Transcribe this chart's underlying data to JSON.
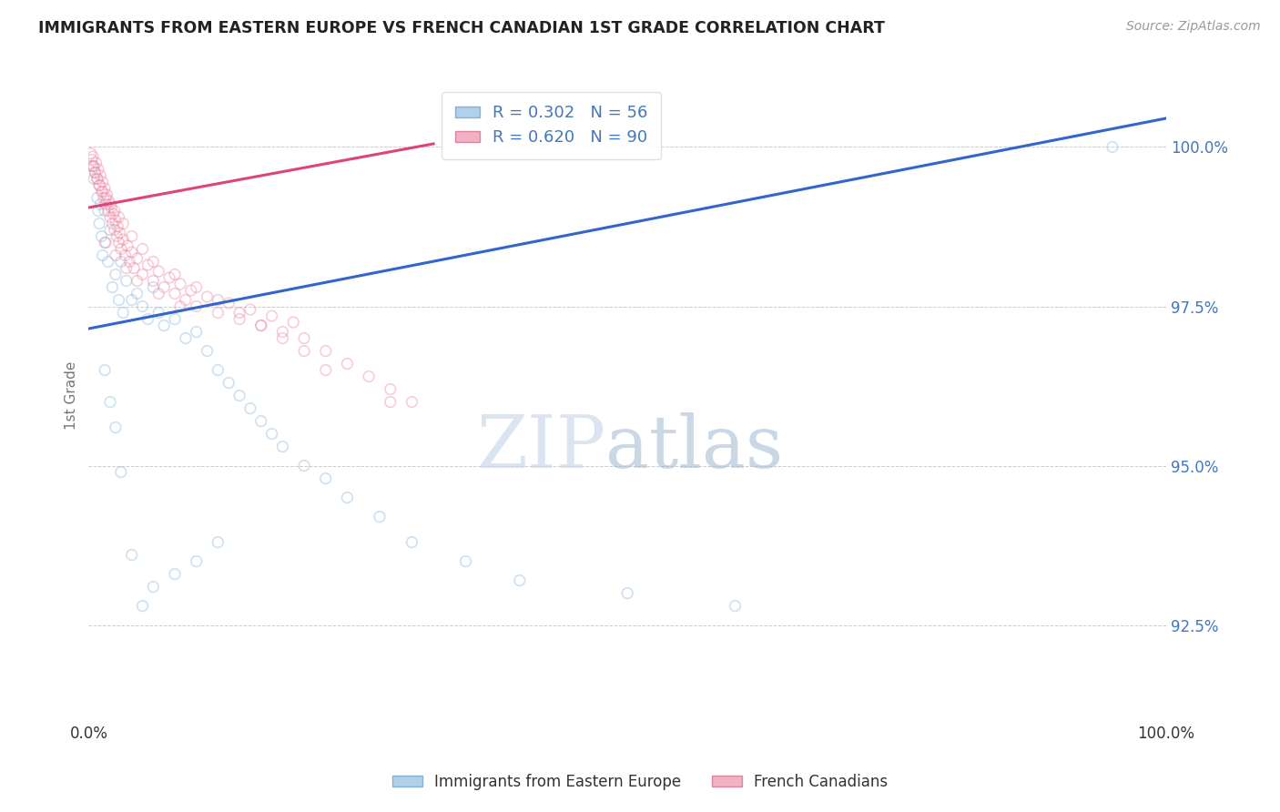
{
  "title": "IMMIGRANTS FROM EASTERN EUROPE VS FRENCH CANADIAN 1ST GRADE CORRELATION CHART",
  "source": "Source: ZipAtlas.com",
  "ylabel": "1st Grade",
  "xlim": [
    0.0,
    100.0
  ],
  "ylim": [
    91.0,
    101.2
  ],
  "yticks": [
    92.5,
    95.0,
    97.5,
    100.0
  ],
  "ytick_labels": [
    "92.5%",
    "95.0%",
    "97.5%",
    "100.0%"
  ],
  "blue_R": 0.302,
  "blue_N": 56,
  "pink_R": 0.62,
  "pink_N": 90,
  "blue_color": "#90bde0",
  "pink_color": "#f090aa",
  "blue_label": "Immigrants from Eastern Europe",
  "pink_label": "French Canadians",
  "watermark_zip": "ZIP",
  "watermark_atlas": "atlas",
  "blue_trend_x": [
    0.0,
    100.0
  ],
  "blue_trend_y": [
    97.15,
    100.45
  ],
  "pink_trend_x": [
    0.0,
    32.0
  ],
  "pink_trend_y": [
    99.05,
    100.05
  ],
  "blue_scatter_x": [
    0.3,
    0.5,
    0.8,
    0.9,
    1.0,
    1.1,
    1.2,
    1.3,
    1.5,
    1.6,
    1.8,
    2.0,
    2.2,
    2.5,
    2.8,
    3.0,
    3.2,
    3.5,
    4.0,
    4.5,
    5.0,
    5.5,
    6.0,
    6.5,
    7.0,
    8.0,
    9.0,
    10.0,
    11.0,
    12.0,
    13.0,
    14.0,
    15.0,
    16.0,
    17.0,
    18.0,
    20.0,
    22.0,
    24.0,
    27.0,
    30.0,
    35.0,
    40.0,
    50.0,
    60.0,
    95.0,
    1.5,
    2.0,
    2.5,
    3.0,
    4.0,
    5.0,
    6.0,
    8.0,
    10.0,
    12.0
  ],
  "blue_scatter_y": [
    99.7,
    99.5,
    99.2,
    99.0,
    98.8,
    99.1,
    98.6,
    98.3,
    99.0,
    98.5,
    98.2,
    98.7,
    97.8,
    98.0,
    97.6,
    98.2,
    97.4,
    97.9,
    97.6,
    97.7,
    97.5,
    97.3,
    97.8,
    97.4,
    97.2,
    97.3,
    97.0,
    97.1,
    96.8,
    96.5,
    96.3,
    96.1,
    95.9,
    95.7,
    95.5,
    95.3,
    95.0,
    94.8,
    94.5,
    94.2,
    93.8,
    93.5,
    93.2,
    93.0,
    92.8,
    100.0,
    96.5,
    96.0,
    95.6,
    94.9,
    93.6,
    92.8,
    93.1,
    93.3,
    93.5,
    93.8
  ],
  "pink_scatter_x": [
    0.2,
    0.3,
    0.4,
    0.5,
    0.6,
    0.7,
    0.8,
    0.9,
    1.0,
    1.1,
    1.2,
    1.3,
    1.4,
    1.5,
    1.6,
    1.7,
    1.8,
    1.9,
    2.0,
    2.1,
    2.2,
    2.3,
    2.4,
    2.5,
    2.6,
    2.7,
    2.8,
    2.9,
    3.0,
    3.2,
    3.4,
    3.6,
    3.8,
    4.0,
    4.2,
    4.5,
    5.0,
    5.5,
    6.0,
    6.5,
    7.0,
    7.5,
    8.0,
    8.5,
    9.0,
    9.5,
    10.0,
    11.0,
    12.0,
    13.0,
    14.0,
    15.0,
    16.0,
    17.0,
    18.0,
    19.0,
    20.0,
    22.0,
    24.0,
    26.0,
    28.0,
    30.0,
    0.4,
    0.6,
    0.8,
    1.0,
    1.3,
    1.6,
    2.0,
    2.4,
    2.8,
    3.2,
    4.0,
    5.0,
    6.0,
    8.0,
    10.0,
    12.0,
    14.0,
    16.0,
    18.0,
    20.0,
    1.5,
    2.5,
    3.5,
    4.5,
    6.5,
    8.5,
    22.0,
    28.0
  ],
  "pink_scatter_y": [
    99.9,
    99.8,
    99.85,
    99.7,
    99.6,
    99.75,
    99.5,
    99.65,
    99.4,
    99.55,
    99.3,
    99.45,
    99.2,
    99.35,
    99.1,
    99.25,
    99.0,
    99.15,
    98.9,
    99.05,
    98.8,
    98.95,
    98.7,
    98.85,
    98.6,
    98.75,
    98.5,
    98.65,
    98.4,
    98.55,
    98.3,
    98.45,
    98.2,
    98.35,
    98.1,
    98.25,
    98.0,
    98.15,
    97.9,
    98.05,
    97.8,
    97.95,
    97.7,
    97.85,
    97.6,
    97.75,
    97.5,
    97.65,
    97.4,
    97.55,
    97.3,
    97.45,
    97.2,
    97.35,
    97.1,
    97.25,
    97.0,
    96.8,
    96.6,
    96.4,
    96.2,
    96.0,
    99.7,
    99.6,
    99.5,
    99.4,
    99.3,
    99.2,
    99.1,
    99.0,
    98.9,
    98.8,
    98.6,
    98.4,
    98.2,
    98.0,
    97.8,
    97.6,
    97.4,
    97.2,
    97.0,
    96.8,
    98.5,
    98.3,
    98.1,
    97.9,
    97.7,
    97.5,
    96.5,
    96.0
  ],
  "background_color": "#ffffff",
  "grid_color": "#cccccc",
  "title_color": "#222222",
  "axis_label_color": "#777777",
  "ytick_color": "#4477bb",
  "marker_size": 70,
  "marker_alpha": 0.45,
  "marker_linewidth": 1.2
}
